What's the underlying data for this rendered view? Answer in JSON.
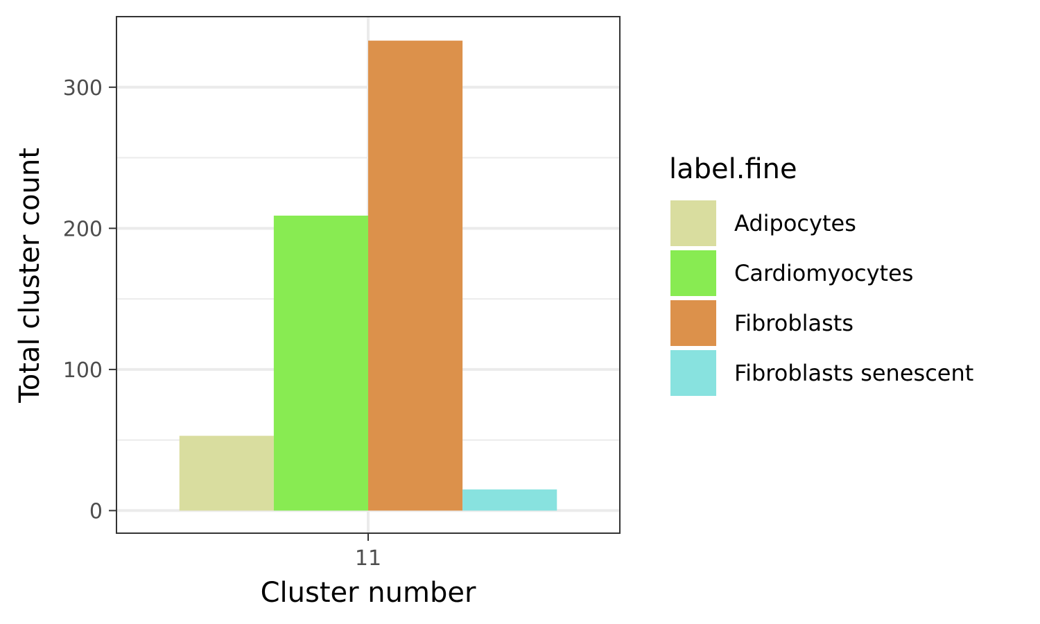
{
  "chart_data": {
    "type": "bar",
    "xlabel": "Cluster number",
    "ylabel": "Total cluster count",
    "categories": [
      "11"
    ],
    "ylim": [
      -16,
      350
    ],
    "yticks": [
      0,
      100,
      200,
      300
    ],
    "grid": true,
    "legend": {
      "title": "label.fine",
      "position": "right"
    },
    "series": [
      {
        "name": "Adipocytes",
        "color": "#d9dd9f",
        "values": [
          53
        ]
      },
      {
        "name": "Cardiomyocytes",
        "color": "#88eb52",
        "values": [
          209
        ]
      },
      {
        "name": "Fibroblasts",
        "color": "#dc914b",
        "values": [
          333
        ]
      },
      {
        "name": "Fibroblasts senescent",
        "color": "#88e2df",
        "values": [
          15
        ]
      }
    ]
  }
}
